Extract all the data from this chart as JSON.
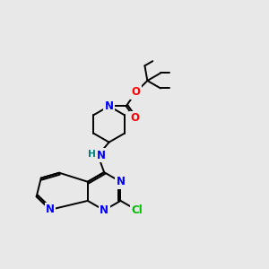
{
  "bg_color": "#e8e8e8",
  "bond_color": "#000000",
  "atom_colors": {
    "N": "#0000ff",
    "O": "#ff0000",
    "Cl": "#00bb00",
    "H": "#008080",
    "C": "#000000"
  },
  "lw": 1.4,
  "fs": 8.5
}
